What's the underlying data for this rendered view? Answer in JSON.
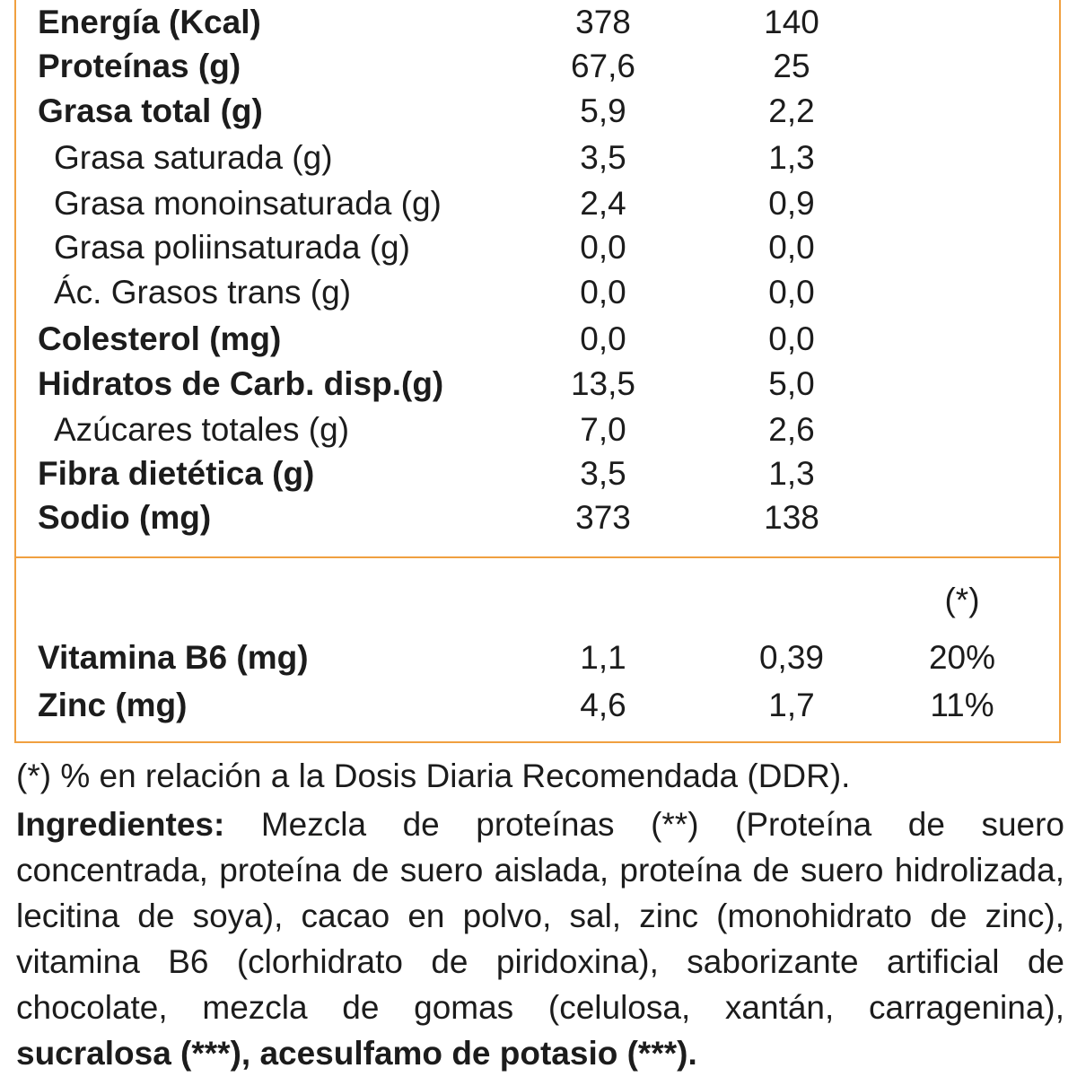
{
  "nutrition": {
    "rows": [
      {
        "label": "Energía (Kcal)",
        "v1": "378",
        "v2": "140",
        "style": "bold"
      },
      {
        "label": "Proteínas (g)",
        "v1": "67,6",
        "v2": "25",
        "style": "bold"
      },
      {
        "label": "Grasa total (g)",
        "v1": "5,9",
        "v2": "2,2",
        "style": "bold"
      },
      {
        "label": "Grasa saturada (g)",
        "v1": "3,5",
        "v2": "1,3",
        "style": "sub"
      },
      {
        "label": "Grasa monoinsaturada (g)",
        "v1": "2,4",
        "v2": "0,9",
        "style": "sub"
      },
      {
        "label": "Grasa poliinsaturada (g)",
        "v1": "0,0",
        "v2": "0,0",
        "style": "sub"
      },
      {
        "label": "Ác. Grasos trans (g)",
        "v1": "0,0",
        "v2": "0,0",
        "style": "sub"
      },
      {
        "label": "Colesterol (mg)",
        "v1": "0,0",
        "v2": "0,0",
        "style": "bold"
      },
      {
        "label": "Hidratos de Carb. disp.(g)",
        "v1": "13,5",
        "v2": "5,0",
        "style": "bold"
      },
      {
        "label": "Azúcares totales (g)",
        "v1": "7,0",
        "v2": "2,6",
        "style": "sub"
      },
      {
        "label": "Fibra dietética (g)",
        "v1": "3,5",
        "v2": "1,3",
        "style": "bold"
      },
      {
        "label": "Sodio (mg)",
        "v1": "373",
        "v2": "138",
        "style": "bold"
      }
    ]
  },
  "micronutrients": {
    "percent_header": "(*)",
    "rows": [
      {
        "label": "Vitamina B6 (mg)",
        "v1": "1,1",
        "v2": "0,39",
        "v3": "20%"
      },
      {
        "label": "Zinc (mg)",
        "v1": "4,6",
        "v2": "1,7",
        "v3": "11%"
      }
    ]
  },
  "footnote": "(*) % en relación a la Dosis Diaria Recomendada (DDR).",
  "ingredients": {
    "label": "Ingredientes:",
    "text": " Mezcla de proteínas (**) (Proteína de suero concentrada, proteína de suero aislada, proteína de suero hidrolizada, lecitina de soya), cacao en polvo, sal, zinc (monohidrato de zinc), vitamina B6 (clorhidrato de piridoxina), saborizante artificial de chocolate, mezcla de gomas (celulosa, xantán, carragenina), ",
    "bold_tail": "sucralosa (***), acesulfamo de potasio (***)."
  }
}
